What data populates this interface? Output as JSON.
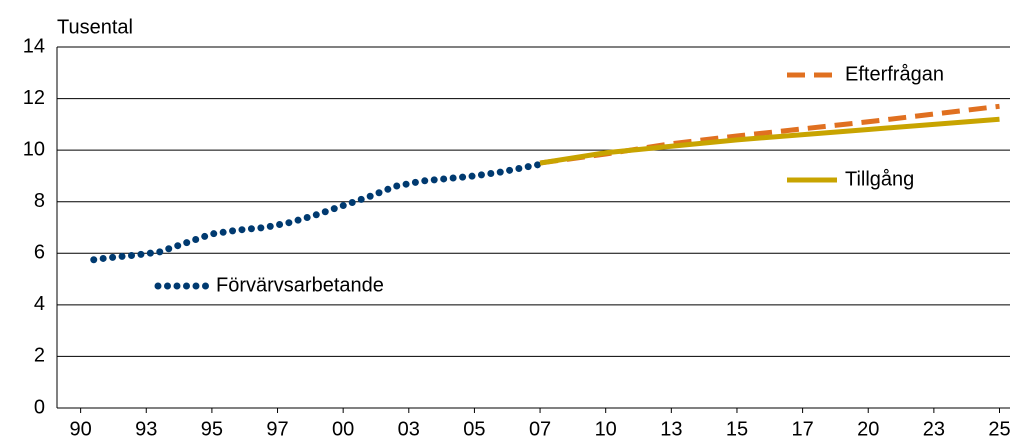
{
  "chart_data": {
    "type": "line",
    "y_label": "Tusental",
    "xlim": [
      1989.1,
      2025.4
    ],
    "xticks": [
      {
        "value": 1990,
        "label": "90"
      },
      {
        "value": 1992.5,
        "label": "93"
      },
      {
        "value": 1995,
        "label": "95"
      },
      {
        "value": 1997.5,
        "label": "97"
      },
      {
        "value": 2000,
        "label": "00"
      },
      {
        "value": 2002.5,
        "label": "03"
      },
      {
        "value": 2005,
        "label": "05"
      },
      {
        "value": 2007.5,
        "label": "07"
      },
      {
        "value": 2010,
        "label": "10"
      },
      {
        "value": 2012.5,
        "label": "13"
      },
      {
        "value": 2015,
        "label": "15"
      },
      {
        "value": 2017.5,
        "label": "17"
      },
      {
        "value": 2020,
        "label": "20"
      },
      {
        "value": 2022.5,
        "label": "23"
      },
      {
        "value": 2025,
        "label": "25"
      }
    ],
    "ylim": [
      0,
      14
    ],
    "yticks": [
      0,
      2,
      4,
      6,
      8,
      10,
      12,
      14
    ],
    "grid": true,
    "series": [
      {
        "name": "Förvärvsarbetande",
        "color": "#003a70",
        "style": "dotted",
        "x": [
          1990.5,
          1991,
          1992,
          1993,
          1994,
          1995,
          1996,
          1997,
          1998,
          1999,
          2000,
          2001,
          2002,
          2003,
          2004,
          2005,
          2006,
          2007.5
        ],
        "values": [
          5.75,
          5.82,
          5.92,
          6.05,
          6.4,
          6.75,
          6.9,
          7.0,
          7.2,
          7.5,
          7.85,
          8.2,
          8.6,
          8.8,
          8.9,
          9.0,
          9.15,
          9.45
        ]
      },
      {
        "name": "Efterfrågan",
        "color": "#e07020",
        "style": "dashed",
        "x": [
          2007.5,
          2010,
          2012.5,
          2015,
          2020,
          2025
        ],
        "values": [
          9.5,
          9.85,
          10.25,
          10.55,
          11.1,
          11.7
        ]
      },
      {
        "name": "Tillgång",
        "color": "#c8a400",
        "style": "solid",
        "x": [
          2007.5,
          2010,
          2012.5,
          2015,
          2020,
          2025
        ],
        "values": [
          9.5,
          9.9,
          10.15,
          10.4,
          10.8,
          11.2
        ]
      }
    ]
  }
}
